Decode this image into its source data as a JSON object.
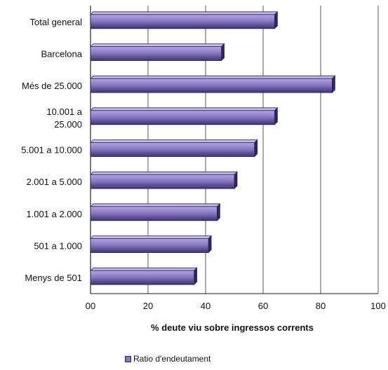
{
  "chart_data": {
    "type": "bar",
    "orientation": "horizontal",
    "categories": [
      [
        "Total general"
      ],
      [
        "Barcelona"
      ],
      [
        "Més de 25.000"
      ],
      [
        "10.001 a",
        "25.000"
      ],
      [
        "5.001 a 10.000"
      ],
      [
        "2.001 a 5.000"
      ],
      [
        "1.001 a 2.000"
      ],
      [
        "501 a 1.000"
      ],
      [
        "Menys de 501"
      ]
    ],
    "series": [
      {
        "name": "Ratio d'endeutament",
        "values": [
          64,
          45.5,
          84,
          64,
          57,
          50,
          44,
          41,
          36
        ]
      }
    ],
    "xlabel": "%  deute viu sobre ingressos corrents",
    "ylabel": "",
    "xlim": [
      0,
      100
    ],
    "xticks": [
      "00",
      "20",
      "40",
      "60",
      "80",
      "100"
    ],
    "grid": true,
    "legend_position": "bottom-left",
    "colors": {
      "bar": "#8a78c4",
      "bar_dark": "#3d3270",
      "bar_light": "#b3a7de",
      "grid": "#555555"
    }
  }
}
